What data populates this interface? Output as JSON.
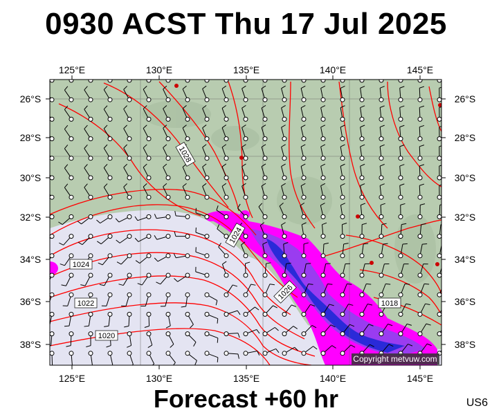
{
  "title": "0930 ACST Thu 17 Jul 2025",
  "footer": "Forecast +60 hr",
  "region_code": "US6",
  "copyright": "Copyright metvuw.com",
  "lon_labels": [
    "125°E",
    "130°E",
    "135°E",
    "140°E",
    "145°E"
  ],
  "lat_labels": [
    "26°S",
    "28°S",
    "30°S",
    "32°S",
    "34°S",
    "36°S",
    "38°S"
  ],
  "isobar_labels": [
    "1024",
    "1028",
    "1024",
    "1022",
    "1020",
    "1026",
    "1018"
  ],
  "colors": {
    "land": "#b8ccb0",
    "sea_high": "#e4e4f2",
    "isobar": "#ff0000",
    "rain_light": "#ff00ff",
    "rain_mod": "#9a3cf0",
    "rain_heavy": "#2a2ad8",
    "station": "#cc0000"
  }
}
